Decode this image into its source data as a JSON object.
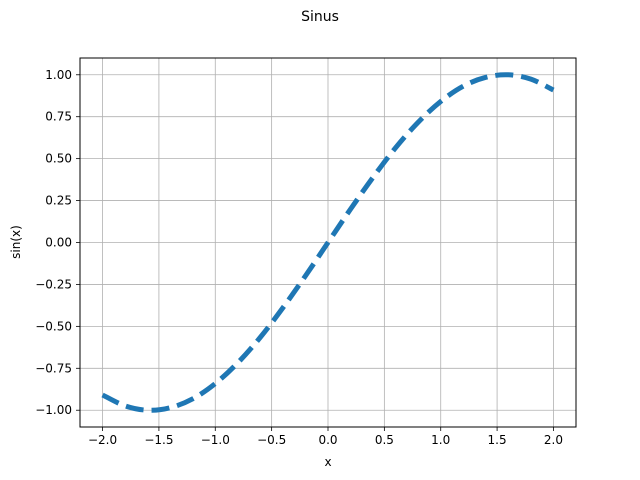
{
  "chart_data": {
    "type": "line",
    "title": "Sinus",
    "xlabel": "x",
    "ylabel": "sin(x)",
    "xlim": [
      -2.2,
      2.2
    ],
    "ylim": [
      -1.1,
      1.1
    ],
    "grid": true,
    "x_ticks": [
      -2.0,
      -1.5,
      -1.0,
      -0.5,
      0.0,
      0.5,
      1.0,
      1.5,
      2.0
    ],
    "x_tick_labels": [
      "−2.0",
      "−1.5",
      "−1.0",
      "−0.5",
      "0.0",
      "0.5",
      "1.0",
      "1.5",
      "2.0"
    ],
    "y_ticks": [
      -1.0,
      -0.75,
      -0.5,
      -0.25,
      0.0,
      0.25,
      0.5,
      0.75,
      1.0
    ],
    "y_tick_labels": [
      "−1.00",
      "−0.75",
      "−0.50",
      "−0.25",
      "0.00",
      "0.25",
      "0.50",
      "0.75",
      "1.00"
    ],
    "series": [
      {
        "color": "#1f77b4",
        "line_style": "dashed",
        "x": [
          -2.0,
          -1.8,
          -1.6,
          -1.4,
          -1.2,
          -1.0,
          -0.8,
          -0.6,
          -0.4,
          -0.2,
          0.0,
          0.2,
          0.4,
          0.6,
          0.8,
          1.0,
          1.2,
          1.4,
          1.6,
          1.8,
          2.0
        ],
        "y": [
          -0.909,
          -0.974,
          -1.0,
          -0.985,
          -0.932,
          -0.841,
          -0.717,
          -0.565,
          -0.389,
          -0.199,
          0.0,
          0.199,
          0.389,
          0.565,
          0.717,
          0.841,
          0.932,
          0.985,
          1.0,
          0.974,
          0.909
        ]
      }
    ]
  }
}
